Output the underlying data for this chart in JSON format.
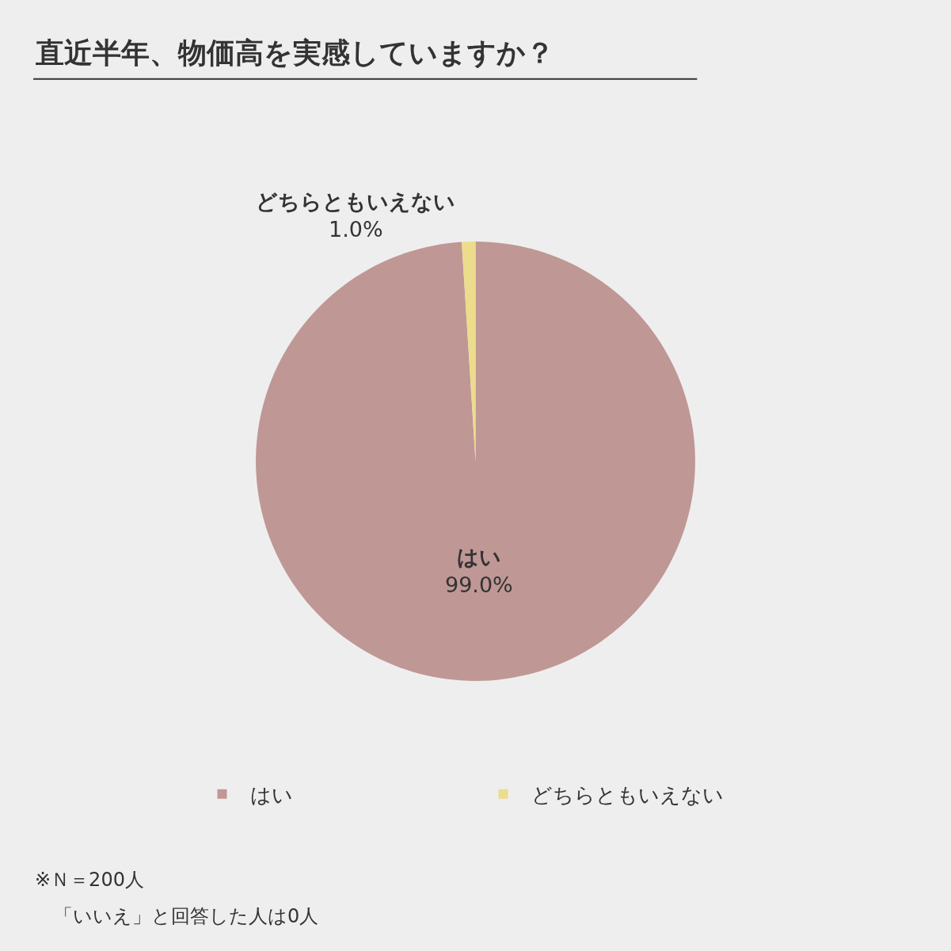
{
  "chart_data": {
    "type": "pie",
    "title": "直近半年、物価高を実感していますか？",
    "categories": [
      "はい",
      "どちらともいえない"
    ],
    "values": [
      99.0,
      1.0
    ],
    "colors": [
      "#bf9795",
      "#ecdc8c"
    ],
    "value_labels": [
      "99.0%",
      "1.0%"
    ],
    "legend": "bottom",
    "annotations": [
      "※Ｎ＝200人",
      "「いいえ」と回答した人は0人"
    ]
  }
}
